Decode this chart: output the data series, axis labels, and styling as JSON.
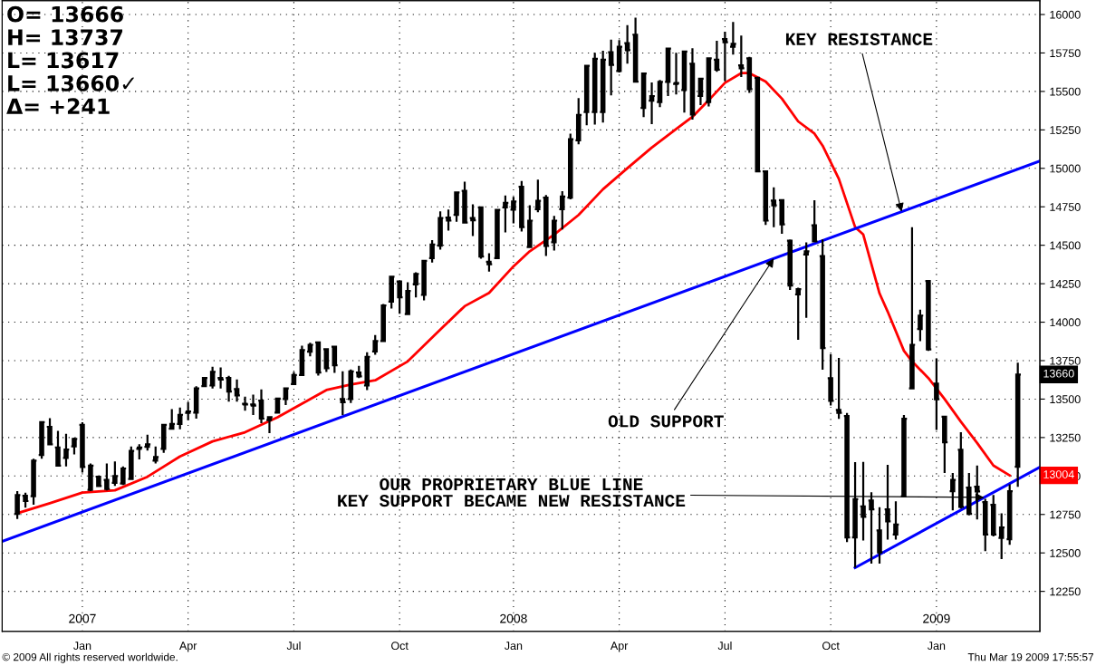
{
  "chart_data": {
    "type": "candlestick",
    "x": [
      "2006-11-06",
      "2006-11-13",
      "2006-11-20",
      "2006-11-27",
      "2006-12-04",
      "2006-12-11",
      "2006-12-18",
      "2006-12-25",
      "2007-01-01",
      "2007-01-08",
      "2007-01-15",
      "2007-01-22",
      "2007-01-29",
      "2007-02-05",
      "2007-02-12",
      "2007-02-19",
      "2007-02-26",
      "2007-03-05",
      "2007-03-12",
      "2007-03-19",
      "2007-03-26",
      "2007-04-02",
      "2007-04-09",
      "2007-04-16",
      "2007-04-23",
      "2007-04-30",
      "2007-05-07",
      "2007-05-14",
      "2007-05-21",
      "2007-05-28",
      "2007-06-04",
      "2007-06-11",
      "2007-06-18",
      "2007-06-25",
      "2007-07-02",
      "2007-07-09",
      "2007-07-16",
      "2007-07-23",
      "2007-07-30",
      "2007-08-06",
      "2007-08-13",
      "2007-08-20",
      "2007-08-27",
      "2007-09-03",
      "2007-09-10",
      "2007-09-17",
      "2007-09-24",
      "2007-10-01",
      "2007-10-08",
      "2007-10-15",
      "2007-10-22",
      "2007-10-29",
      "2007-11-05",
      "2007-11-12",
      "2007-11-19",
      "2007-11-26",
      "2007-12-03",
      "2007-12-10",
      "2007-12-17",
      "2007-12-24",
      "2007-12-31",
      "2008-01-07",
      "2008-01-14",
      "2008-01-21",
      "2008-01-28",
      "2008-02-04",
      "2008-02-11",
      "2008-02-18",
      "2008-02-25",
      "2008-03-03",
      "2008-03-10",
      "2008-03-17",
      "2008-03-24",
      "2008-03-31",
      "2008-04-07",
      "2008-04-14",
      "2008-04-21",
      "2008-04-28",
      "2008-05-05",
      "2008-05-12",
      "2008-05-19",
      "2008-05-26",
      "2008-06-02",
      "2008-06-09",
      "2008-06-16",
      "2008-06-23",
      "2008-06-30",
      "2008-07-07",
      "2008-07-14",
      "2008-07-21",
      "2008-07-28",
      "2008-08-04",
      "2008-08-11",
      "2008-08-18",
      "2008-08-25",
      "2008-09-01",
      "2008-09-08",
      "2008-09-15",
      "2008-09-22",
      "2008-09-29",
      "2008-10-06",
      "2008-10-13",
      "2008-10-20",
      "2008-10-27",
      "2008-11-03",
      "2008-11-10",
      "2008-11-17",
      "2008-11-24",
      "2008-12-01",
      "2008-12-08",
      "2008-12-15",
      "2008-12-22",
      "2008-12-29",
      "2009-01-05",
      "2009-01-12",
      "2009-01-19",
      "2009-01-26",
      "2009-02-02",
      "2009-02-09",
      "2009-02-16",
      "2009-02-23",
      "2009-03-02",
      "2009-03-09",
      "2009-03-16"
    ],
    "series": [
      {
        "color": "#000000",
        "ohlc": [
          [
            12754,
            12902,
            12721,
            12876
          ],
          [
            12872,
            12892,
            12794,
            12837
          ],
          [
            12868,
            13112,
            12813,
            13100
          ],
          [
            13137,
            13357,
            13112,
            13350
          ],
          [
            13320,
            13376,
            13200,
            13206
          ],
          [
            13186,
            13294,
            13062,
            13068
          ],
          [
            13117,
            13274,
            13062,
            13172
          ],
          [
            13192,
            13249,
            13141,
            13241
          ],
          [
            13333,
            13349,
            13023,
            13059
          ],
          [
            12910,
            13082,
            12902,
            13068
          ],
          [
            12996,
            13004,
            12935,
            12935
          ],
          [
            12974,
            13082,
            12906,
            12915
          ],
          [
            12955,
            13094,
            12935,
            13000
          ],
          [
            12951,
            13062,
            12941,
            13049
          ],
          [
            12980,
            13192,
            12974,
            13163
          ],
          [
            13176,
            13206,
            13108,
            13186
          ],
          [
            13190,
            13268,
            13166,
            13206
          ],
          [
            13100,
            13192,
            13082,
            13123
          ],
          [
            13176,
            13339,
            13151,
            13333
          ],
          [
            13308,
            13435,
            13304,
            13339
          ],
          [
            13339,
            13445,
            13304,
            13398
          ],
          [
            13410,
            13480,
            13363,
            13420
          ],
          [
            13412,
            13584,
            13373,
            13570
          ],
          [
            13584,
            13643,
            13578,
            13637
          ],
          [
            13588,
            13710,
            13569,
            13677
          ],
          [
            13637,
            13706,
            13569,
            13627
          ],
          [
            13637,
            13651,
            13484,
            13549
          ],
          [
            13565,
            13627,
            13484,
            13524
          ],
          [
            13470,
            13516,
            13425,
            13465
          ],
          [
            13465,
            13529,
            13396,
            13457
          ],
          [
            13490,
            13563,
            13343,
            13373
          ],
          [
            13363,
            13386,
            13278,
            13382
          ],
          [
            13412,
            13510,
            13406,
            13504
          ],
          [
            13500,
            13575,
            13461,
            13569
          ],
          [
            13598,
            13677,
            13598,
            13657
          ],
          [
            13657,
            13847,
            13653,
            13818
          ],
          [
            13808,
            13867,
            13778,
            13853
          ],
          [
            13869,
            13873,
            13653,
            13673
          ],
          [
            13824,
            13828,
            13677,
            13700
          ],
          [
            13840,
            13847,
            13671,
            13720
          ],
          [
            13500,
            13681,
            13396,
            13480
          ],
          [
            13500,
            13692,
            13474,
            13680
          ],
          [
            13673,
            13716,
            13637,
            13647
          ],
          [
            13588,
            13804,
            13559,
            13775
          ],
          [
            13810,
            13916,
            13788,
            13877
          ],
          [
            13877,
            14118,
            13877,
            14108
          ],
          [
            14134,
            14299,
            14089,
            14295
          ],
          [
            14265,
            14269,
            14055,
            14161
          ],
          [
            14053,
            14259,
            14049,
            14203
          ],
          [
            14246,
            14324,
            14161,
            14314
          ],
          [
            14177,
            14403,
            14142,
            14399
          ],
          [
            14416,
            14534,
            14387,
            14505
          ],
          [
            14497,
            14720,
            14471,
            14677
          ],
          [
            14680,
            14732,
            14595,
            14660
          ],
          [
            14697,
            14848,
            14652,
            14844
          ],
          [
            14854,
            14913,
            14642,
            14648
          ],
          [
            14677,
            14766,
            14560,
            14662
          ],
          [
            14746,
            14750,
            14412,
            14426
          ],
          [
            14393,
            14448,
            14328,
            14377
          ],
          [
            14416,
            14736,
            14412,
            14730
          ],
          [
            14746,
            14824,
            14583,
            14775
          ],
          [
            14732,
            14815,
            14642,
            14785
          ],
          [
            14880,
            14917,
            14589,
            14618
          ],
          [
            14489,
            14760,
            14483,
            14660
          ],
          [
            14734,
            14927,
            14715,
            14789
          ],
          [
            14810,
            14827,
            14430,
            14495
          ],
          [
            14519,
            14691,
            14466,
            14660
          ],
          [
            14734,
            14852,
            14603,
            14817
          ],
          [
            14809,
            15225,
            14799,
            15190
          ],
          [
            15182,
            15456,
            15156,
            15347
          ],
          [
            15366,
            15670,
            15280,
            15666
          ],
          [
            15366,
            15751,
            15284,
            15712
          ],
          [
            15366,
            15765,
            15298,
            15706
          ],
          [
            15755,
            15837,
            15474,
            15672
          ],
          [
            15633,
            15833,
            15623,
            15790
          ],
          [
            15814,
            15931,
            15680,
            15768
          ],
          [
            15869,
            15980,
            15559,
            15564
          ],
          [
            15392,
            15621,
            15333,
            15617
          ],
          [
            15440,
            15559,
            15288,
            15470
          ],
          [
            15431,
            15574,
            15398,
            15562
          ],
          [
            15562,
            15780,
            15470,
            15778
          ],
          [
            15549,
            15751,
            15480,
            15555
          ],
          [
            15509,
            15765,
            15362,
            15759
          ],
          [
            15680,
            15780,
            15317,
            15350
          ],
          [
            15470,
            15584,
            15411,
            15582
          ],
          [
            15431,
            15721,
            15402,
            15715
          ],
          [
            15706,
            15829,
            15627,
            15641
          ],
          [
            15840,
            15888,
            15568,
            15820
          ],
          [
            15790,
            15951,
            15739,
            15810
          ],
          [
            15670,
            15863,
            15594,
            15650
          ],
          [
            15715,
            15725,
            15490,
            15515
          ],
          [
            15588,
            15592,
            14976,
            14980
          ],
          [
            14980,
            14986,
            14632,
            14660
          ],
          [
            14790,
            14876,
            14617,
            14760
          ],
          [
            14793,
            14797,
            14574,
            14636
          ],
          [
            14530,
            14538,
            14209,
            14238
          ],
          [
            14180,
            14224,
            13885,
            14215
          ],
          [
            14440,
            14519,
            14028,
            14460
          ],
          [
            14630,
            14793,
            14519,
            14525
          ],
          [
            14430,
            14538,
            13691,
            13832
          ],
          [
            13636,
            13793,
            13459,
            13488
          ],
          [
            13430,
            13767,
            13371,
            13410
          ],
          [
            13390,
            13410,
            12570,
            12600
          ],
          [
            12600,
            13090,
            12404,
            12850
          ],
          [
            12803,
            13091,
            12581,
            12734
          ],
          [
            12840,
            12895,
            12430,
            12783
          ],
          [
            12646,
            12797,
            12430,
            12503
          ],
          [
            12783,
            13072,
            12587,
            12705
          ],
          [
            12620,
            12836,
            12587,
            12685
          ],
          [
            12868,
            13397,
            12862,
            13372
          ],
          [
            13570,
            14618,
            13568,
            13853
          ],
          [
            13955,
            14082,
            13876,
            14043
          ],
          [
            14268,
            14274,
            13813,
            13823
          ],
          [
            13600,
            13764,
            13299,
            13499
          ],
          [
            13385,
            13391,
            13019,
            13219
          ],
          [
            12901,
            13019,
            12777,
            12974
          ],
          [
            13170,
            13284,
            12789,
            12800
          ],
          [
            12924,
            13019,
            12744,
            12754
          ],
          [
            12930,
            13068,
            12718,
            12900
          ],
          [
            12830,
            12852,
            12512,
            12620
          ],
          [
            12813,
            12876,
            12607,
            12620
          ],
          [
            12597,
            12758,
            12460,
            12665
          ],
          [
            12589,
            12946,
            12552,
            12901
          ],
          [
            13060,
            13737,
            12930,
            13660
          ]
        ]
      },
      {
        "type": "line",
        "color": "#ff0000",
        "x": [
          "2006-11-06",
          "2006-12-04",
          "2007-01-01",
          "2007-01-29",
          "2007-02-26",
          "2007-03-26",
          "2007-04-23",
          "2007-05-21",
          "2007-06-18",
          "2007-07-16",
          "2007-07-30",
          "2007-08-20",
          "2007-09-10",
          "2007-10-08",
          "2007-11-05",
          "2007-11-26",
          "2007-12-17",
          "2008-01-07",
          "2008-01-21",
          "2008-02-11",
          "2008-03-03",
          "2008-03-24",
          "2008-04-14",
          "2008-05-05",
          "2008-05-26",
          "2008-06-09",
          "2008-06-23",
          "2008-07-07",
          "2008-07-21",
          "2008-07-28",
          "2008-08-11",
          "2008-08-25",
          "2008-09-08",
          "2008-09-22",
          "2008-09-29",
          "2008-10-13",
          "2008-10-27",
          "2008-11-03",
          "2008-11-17",
          "2008-11-24",
          "2008-12-08",
          "2008-12-15",
          "2008-12-29",
          "2009-01-12",
          "2009-01-26",
          "2009-02-09",
          "2009-02-23",
          "2009-03-09"
        ],
        "values": [
          12758,
          12823,
          12892,
          12907,
          12995,
          13127,
          13225,
          13284,
          13382,
          13500,
          13559,
          13594,
          13622,
          13745,
          13951,
          14104,
          14190,
          14363,
          14461,
          14569,
          14697,
          14864,
          15001,
          15135,
          15256,
          15335,
          15443,
          15556,
          15619,
          15619,
          15564,
          15453,
          15305,
          15226,
          15148,
          14932,
          14618,
          14570,
          14187,
          14069,
          13814,
          13745,
          13637,
          13500,
          13353,
          13215,
          13068,
          13004
        ]
      },
      {
        "type": "line",
        "color": "#0000ff",
        "x": [
          "2006-10-24",
          "2009-04-04"
        ],
        "values": [
          12575,
          15048
        ]
      },
      {
        "type": "line",
        "color": "#0000ff",
        "x": [
          "2008-10-27",
          "2009-04-04"
        ],
        "values": [
          12404,
          13058
        ]
      }
    ],
    "xlim": [
      "2006-10-24",
      "2009-04-04"
    ],
    "xticks": [
      {
        "value": "2007-01-01",
        "label": "Jan"
      },
      {
        "value": "2007-04-02",
        "label": "Apr"
      },
      {
        "value": "2007-07-02",
        "label": "Jul"
      },
      {
        "value": "2007-10-01",
        "label": "Oct"
      },
      {
        "value": "2008-01-07",
        "label": "Jan"
      },
      {
        "value": "2008-04-07",
        "label": "Apr"
      },
      {
        "value": "2008-07-07",
        "label": "Jul"
      },
      {
        "value": "2008-10-06",
        "label": "Oct"
      },
      {
        "value": "2009-01-05",
        "label": "Jan"
      }
    ],
    "x2lim": [
      "2006-10-24",
      "2009-04-04"
    ],
    "x2ticks": [
      {
        "value": "2007-01-01",
        "label": "2007"
      },
      {
        "value": "2008-01-07",
        "label": "2008"
      },
      {
        "value": "2009-01-05",
        "label": "2009"
      }
    ],
    "ylim": [
      11990,
      16090
    ],
    "yticks": [
      12250,
      12500,
      12750,
      13000,
      13250,
      13500,
      13750,
      14000,
      14250,
      14500,
      14750,
      15000,
      15250,
      15500,
      15750,
      16000
    ],
    "grid": true,
    "annotations": [
      "O= 13666",
      "H= 13737",
      "L= 13617",
      "L= 13660✓",
      "Δ= +241",
      "© 2009 All rights reserved worldwide.",
      "Thu Mar 19 2009 17:55:57",
      {
        "text": "KEY RESISTANCE",
        "x": "2008-12-06",
        "y": 14718
      },
      {
        "text": "OLD SUPPORT",
        "x": "2008-08-18",
        "y": 14414
      },
      {
        "text": "OUR PROPRIETARY BLUE LINE\nKEY SUPPORT BECAME NEW RESISTANCE",
        "x": "2009-02-15",
        "y": 12861
      },
      {
        "text": "13660",
        "y": 13660
      },
      {
        "text": "13004",
        "y": 13004
      }
    ]
  }
}
